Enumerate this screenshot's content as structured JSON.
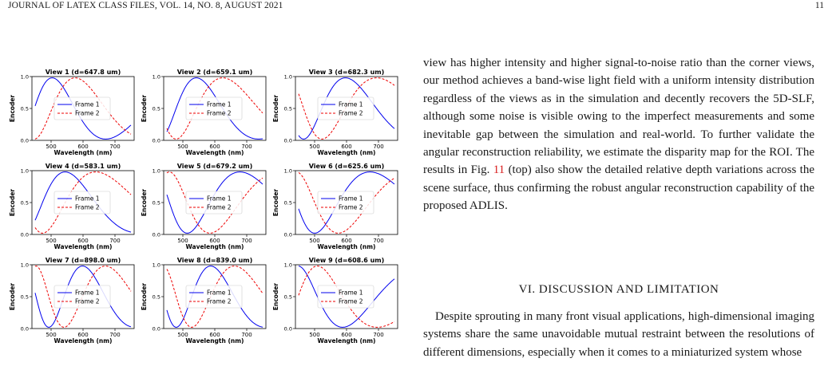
{
  "header": {
    "journal": "JOURNAL OF LATEX CLASS FILES, VOL. 14, NO. 8, AUGUST 2021",
    "page_number": "11"
  },
  "chart_data": {
    "type": "line",
    "layout": "3x3 grid of subplots",
    "xlabel": "Wavelength (nm)",
    "ylabel": "Encoder",
    "xticks": [
      500,
      600,
      700
    ],
    "yticks": [
      0.0,
      0.5,
      1.0
    ],
    "xlim": [
      440,
      760
    ],
    "ylim": [
      0,
      1
    ],
    "legend_placement": "center-left",
    "series_names": [
      "Frame 1",
      "Frame 2"
    ],
    "series_colors": [
      "#0000ee",
      "#ee0000"
    ],
    "series_styles": [
      "solid",
      "dashed"
    ],
    "panels": [
      {
        "title": "View 1 (d=647.8 um)",
        "d": 647.8
      },
      {
        "title": "View 2 (d=659.1 um)",
        "d": 659.1
      },
      {
        "title": "View 3 (d=682.3 um)",
        "d": 682.3
      },
      {
        "title": "View 4 (d=583.1 um)",
        "d": 583.1
      },
      {
        "title": "View 5 (d=679.2 um)",
        "d": 679.2
      },
      {
        "title": "View 6 (d=625.6 um)",
        "d": 625.6
      },
      {
        "title": "View 7 (d=898.0 um)",
        "d": 898.0
      },
      {
        "title": "View 8 (d=839.0 um)",
        "d": 839.0
      },
      {
        "title": "View 9 (d=608.6 um)",
        "d": 608.6
      }
    ]
  },
  "body": {
    "para1_a": "view has higher intensity and higher signal-to-noise ratio than the corner views, our method achieves a band-wise light field with a uniform intensity distribution regardless of the views as in the simulation and decently recovers the 5D-SLF, although some noise is visible owing to the imperfect measurements and some inevitable gap between the simulation and real-world. To further validate the angular reconstruction reliability, we estimate the disparity map for the ROI. The results in ",
    "para1_fig": "Fig. ",
    "para1_ref": "11",
    "para1_b": " (top) also show the detailed relative depth variations across the scene surface, thus confirming the robust angular reconstruction capability of the proposed ADLIS.",
    "section_title": "VI. DISCUSSION AND LIMITATION",
    "para2": "Despite sprouting in many front visual applications, high-dimensional imaging systems share the same unavoidable mutual restraint between the resolutions of different dimensions, especially when it comes to a miniaturized system whose"
  }
}
